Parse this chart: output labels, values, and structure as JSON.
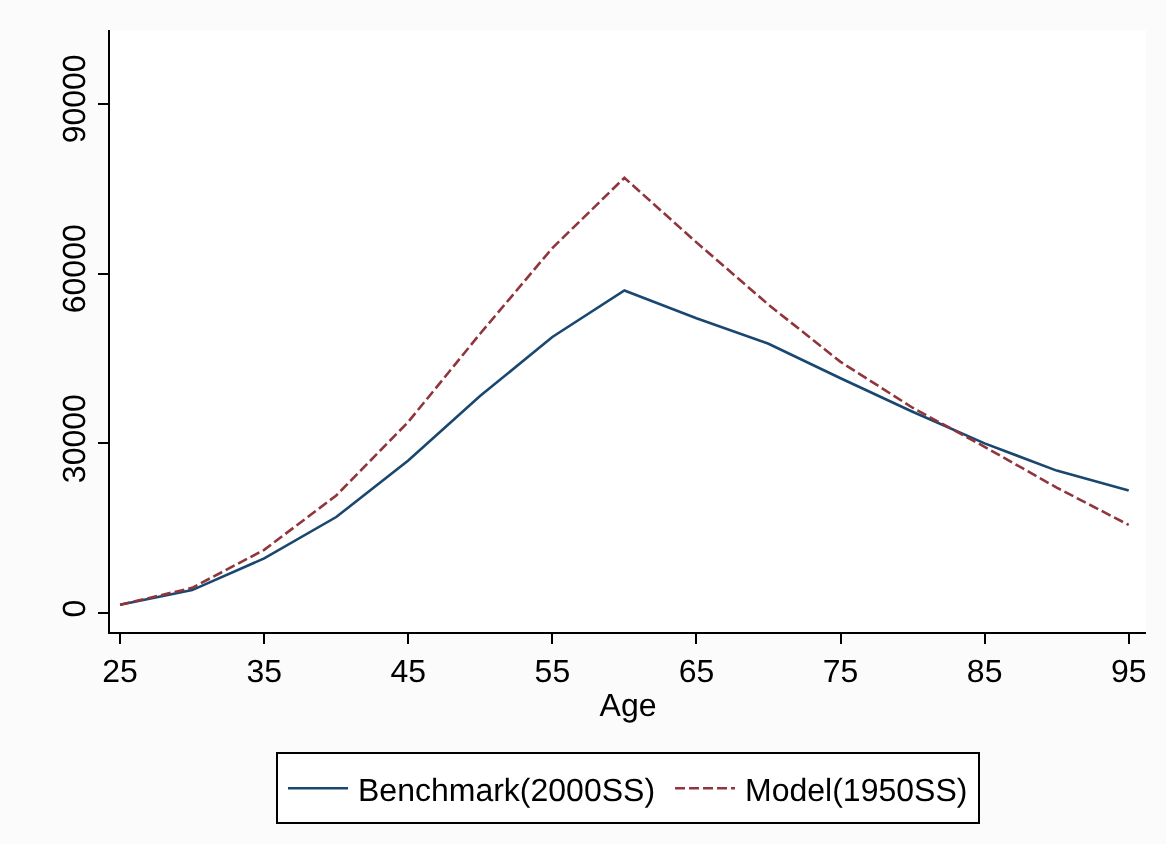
{
  "chart_data": {
    "type": "line",
    "xlabel": "Age",
    "x": [
      25,
      30,
      35,
      40,
      45,
      50,
      55,
      60,
      65,
      70,
      75,
      80,
      85,
      90,
      95
    ],
    "series": [
      {
        "name": "Benchmark(2000SS)",
        "color": "#1a476f",
        "line_style": "solid",
        "values": [
          1500,
          4100,
          9700,
          17000,
          27000,
          38400,
          48800,
          57000,
          52100,
          47600,
          41500,
          35600,
          30000,
          25200,
          21700
        ]
      },
      {
        "name": "Model(1950SS)",
        "color": "#90353b",
        "line_style": "dashed",
        "values": [
          1500,
          4500,
          11200,
          20800,
          33800,
          49400,
          64500,
          76900,
          65500,
          54500,
          44400,
          36300,
          29400,
          22200,
          15600
        ]
      }
    ],
    "xlim": [
      24.3,
      96.2
    ],
    "xticks": [
      25,
      35,
      45,
      55,
      65,
      75,
      85,
      95
    ],
    "ylim": [
      -3300,
      103000
    ],
    "yticks": [
      0,
      30000,
      60000,
      90000
    ],
    "legend": "bottom",
    "marker": "none"
  }
}
